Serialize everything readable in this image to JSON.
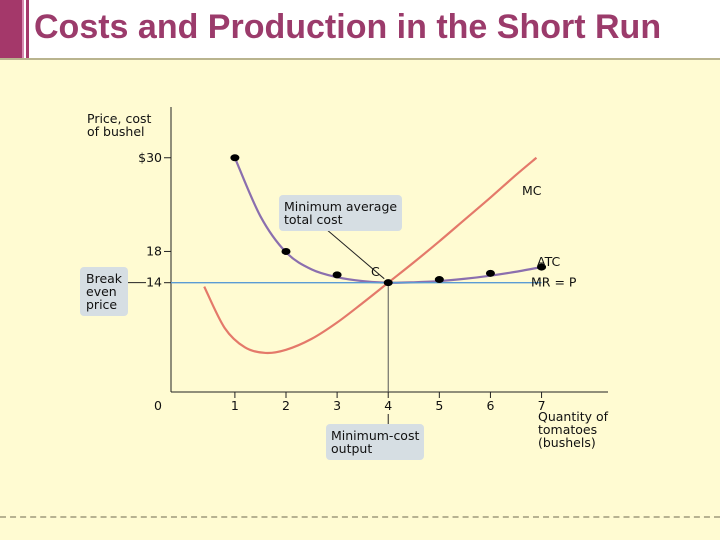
{
  "slide": {
    "title": "Costs and Production in the Short Run",
    "colors": {
      "title": "#9b3b6b",
      "accent": "#a4386a",
      "background": "#fffbd2"
    }
  },
  "chart_data": {
    "type": "line",
    "ylabel_lines": [
      "Price, cost",
      "of bushel"
    ],
    "xlabel_lines": [
      "Quantity of",
      "tomatoes",
      "(bushels)"
    ],
    "origin_label": "0",
    "x_ticks": [
      1,
      2,
      3,
      4,
      5,
      6,
      7
    ],
    "y_tick_labels": [
      {
        "value": 30,
        "label": "$30"
      },
      {
        "value": 18,
        "label": "18"
      },
      {
        "value": 14,
        "label": "14"
      }
    ],
    "xlim": [
      -0.25,
      8.3
    ],
    "ylim": [
      0,
      36.5
    ],
    "series": [
      {
        "name": "MC",
        "color": "#e4796a",
        "x": [
          0.4,
          0.8,
          1.2,
          1.6,
          2.0,
          2.5,
          3.0,
          3.5,
          4.0,
          4.5,
          5.0,
          5.5,
          6.0,
          6.5,
          6.9
        ],
        "y": [
          13.5,
          8.2,
          5.7,
          5.0,
          5.4,
          6.8,
          8.9,
          11.4,
          14.0,
          16.6,
          19.3,
          22.1,
          24.9,
          27.8,
          30.0
        ]
      },
      {
        "name": "ATC",
        "color": "#8b6fae",
        "x": [
          1,
          1.5,
          2,
          2.5,
          3,
          3.5,
          4,
          4.5,
          5,
          5.5,
          6,
          6.5,
          7
        ],
        "y": [
          30,
          22.5,
          17.9,
          15.7,
          14.7,
          14.2,
          14.0,
          14.05,
          14.2,
          14.5,
          14.9,
          15.4,
          16.0
        ]
      },
      {
        "name": "MR = P",
        "color": "#5a9bd4",
        "x": [
          -0.25,
          7.0
        ],
        "y": [
          14,
          14
        ]
      }
    ],
    "points": [
      {
        "x": 1,
        "y": 30
      },
      {
        "x": 2,
        "y": 18
      },
      {
        "x": 3,
        "y": 15
      },
      {
        "x": 4,
        "y": 14
      },
      {
        "x": 5,
        "y": 14.4
      },
      {
        "x": 6,
        "y": 15.2
      },
      {
        "x": 7,
        "y": 16.0
      }
    ],
    "point_c_label": "C",
    "annotations": {
      "min_atc": [
        "Minimum average",
        "total cost"
      ],
      "breakeven": [
        "Break",
        "even",
        "price"
      ],
      "min_cost_output": [
        "Minimum-cost",
        "output"
      ]
    }
  }
}
